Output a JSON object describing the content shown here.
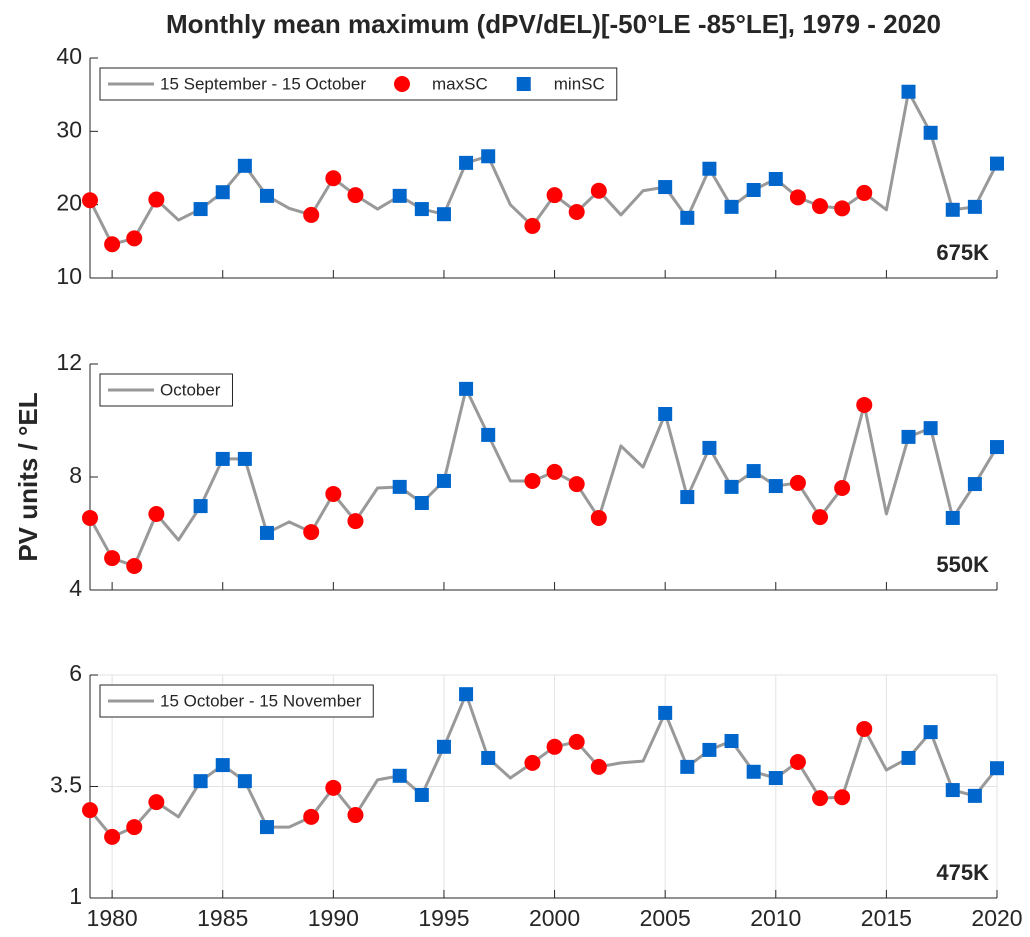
{
  "chart_data": [
    {
      "type": "line",
      "title": "Monthly mean maximum (dPV/dEL)[-50°LE -85°LE], 1979 - 2020",
      "annotation": "675K",
      "x": [
        1979,
        1980,
        1981,
        1982,
        1983,
        1984,
        1985,
        1986,
        1987,
        1988,
        1989,
        1990,
        1991,
        1992,
        1993,
        1994,
        1995,
        1996,
        1997,
        1998,
        1999,
        2000,
        2001,
        2002,
        2003,
        2004,
        2005,
        2006,
        2007,
        2008,
        2009,
        2010,
        2011,
        2012,
        2013,
        2014,
        2015,
        2016,
        2017,
        2018,
        2019,
        2020
      ],
      "xlim": [
        1979,
        2020
      ],
      "xticks": [
        1980,
        1985,
        1990,
        1995,
        2000,
        2005,
        2010,
        2015,
        2020
      ],
      "show_xtick_labels": false,
      "ylim": [
        10,
        40
      ],
      "yticks": [
        10,
        20,
        30,
        40
      ],
      "grid": false,
      "legend": "upper left",
      "series": [
        {
          "name": "15 September - 15 October",
          "color": "#999999",
          "values": [
            20.6,
            14.6,
            15.4,
            20.7,
            17.9,
            19.4,
            21.7,
            25.3,
            21.2,
            19.5,
            18.6,
            23.6,
            21.3,
            19.4,
            21.2,
            19.4,
            18.7,
            25.7,
            26.6,
            20.0,
            17.1,
            21.3,
            19.0,
            21.9,
            18.6,
            21.9,
            22.4,
            18.2,
            24.9,
            19.7,
            22.0,
            23.5,
            21.0,
            19.8,
            19.5,
            21.6,
            19.3,
            35.4,
            29.8,
            19.3,
            19.7,
            25.6
          ]
        },
        {
          "name": "maxSC",
          "color": "#ff0000",
          "marker": "circle",
          "values": [
            20.6,
            14.6,
            15.4,
            20.7,
            null,
            null,
            null,
            null,
            null,
            null,
            18.6,
            23.6,
            21.3,
            null,
            null,
            null,
            null,
            null,
            null,
            null,
            17.1,
            21.3,
            19.0,
            21.9,
            null,
            null,
            null,
            null,
            null,
            null,
            null,
            null,
            21.0,
            19.8,
            19.5,
            21.6,
            null,
            null,
            null,
            null,
            null,
            null
          ]
        },
        {
          "name": "minSC",
          "color": "#0066cc",
          "marker": "square",
          "values": [
            null,
            null,
            null,
            null,
            null,
            19.4,
            21.7,
            25.3,
            21.2,
            null,
            null,
            null,
            null,
            null,
            21.2,
            19.4,
            18.7,
            25.7,
            26.6,
            null,
            null,
            null,
            null,
            null,
            null,
            null,
            22.4,
            18.2,
            24.9,
            19.7,
            22.0,
            23.5,
            null,
            null,
            null,
            null,
            null,
            35.4,
            29.8,
            19.3,
            19.7,
            25.6
          ]
        }
      ]
    },
    {
      "type": "line",
      "ylabel": "PV units / °EL",
      "annotation": "550K",
      "x": [
        1979,
        1980,
        1981,
        1982,
        1983,
        1984,
        1985,
        1986,
        1987,
        1988,
        1989,
        1990,
        1991,
        1992,
        1993,
        1994,
        1995,
        1996,
        1997,
        1998,
        1999,
        2000,
        2001,
        2002,
        2003,
        2004,
        2005,
        2006,
        2007,
        2008,
        2009,
        2010,
        2011,
        2012,
        2013,
        2014,
        2015,
        2016,
        2017,
        2018,
        2019,
        2020
      ],
      "xlim": [
        1979,
        2020
      ],
      "xticks": [
        1980,
        1985,
        1990,
        1995,
        2000,
        2005,
        2010,
        2015,
        2020
      ],
      "show_xtick_labels": false,
      "ylim": [
        4,
        12
      ],
      "yticks": [
        4,
        8,
        12
      ],
      "grid": false,
      "legend": "upper left",
      "series": [
        {
          "name": "October",
          "color": "#999999",
          "values": [
            6.55,
            5.13,
            4.85,
            6.69,
            5.77,
            6.97,
            8.64,
            8.64,
            6.02,
            6.41,
            6.05,
            7.4,
            6.44,
            7.61,
            7.65,
            7.08,
            7.86,
            11.12,
            9.49,
            7.86,
            7.86,
            8.18,
            7.75,
            6.55,
            9.1,
            8.35,
            10.23,
            7.29,
            9.03,
            7.65,
            8.21,
            7.68,
            7.79,
            6.58,
            7.61,
            10.55,
            6.69,
            9.42,
            9.73,
            6.55,
            7.75,
            9.06
          ]
        },
        {
          "color": "#ff0000",
          "marker": "circle",
          "values": [
            6.55,
            5.13,
            4.85,
            6.69,
            null,
            null,
            null,
            null,
            null,
            null,
            6.05,
            7.4,
            6.44,
            null,
            null,
            null,
            null,
            null,
            null,
            null,
            7.86,
            8.18,
            7.75,
            6.55,
            null,
            null,
            null,
            null,
            null,
            null,
            null,
            null,
            7.79,
            6.58,
            7.61,
            10.55,
            null,
            null,
            null,
            null,
            null,
            null
          ]
        },
        {
          "color": "#0066cc",
          "marker": "square",
          "values": [
            null,
            null,
            null,
            null,
            null,
            6.97,
            8.64,
            8.64,
            6.02,
            null,
            null,
            null,
            null,
            null,
            7.65,
            7.08,
            7.86,
            11.12,
            9.49,
            null,
            null,
            null,
            null,
            null,
            null,
            null,
            10.23,
            7.29,
            9.03,
            7.65,
            8.21,
            7.68,
            null,
            null,
            null,
            null,
            null,
            9.42,
            9.73,
            6.55,
            7.75,
            9.06
          ]
        }
      ]
    },
    {
      "type": "line",
      "annotation": "475K",
      "x": [
        1979,
        1980,
        1981,
        1982,
        1983,
        1984,
        1985,
        1986,
        1987,
        1988,
        1989,
        1990,
        1991,
        1992,
        1993,
        1994,
        1995,
        1996,
        1997,
        1998,
        1999,
        2000,
        2001,
        2002,
        2003,
        2004,
        2005,
        2006,
        2007,
        2008,
        2009,
        2010,
        2011,
        2012,
        2013,
        2014,
        2015,
        2016,
        2017,
        2018,
        2019,
        2020
      ],
      "xlim": [
        1979,
        2020
      ],
      "xticks": [
        1980,
        1985,
        1990,
        1995,
        2000,
        2005,
        2010,
        2015,
        2020
      ],
      "show_xtick_labels": true,
      "ylim": [
        1,
        6
      ],
      "yticks": [
        1,
        3.5,
        6
      ],
      "grid": true,
      "legend": "upper left",
      "series": [
        {
          "name": "15 October - 15 November",
          "color": "#999999",
          "values": [
            2.97,
            2.37,
            2.59,
            3.15,
            2.82,
            3.62,
            3.98,
            3.62,
            2.59,
            2.59,
            2.82,
            3.47,
            2.86,
            3.65,
            3.74,
            3.31,
            4.39,
            5.57,
            4.14,
            3.69,
            4.03,
            4.39,
            4.5,
            3.94,
            4.03,
            4.07,
            5.15,
            3.94,
            4.32,
            4.52,
            3.83,
            3.69,
            4.05,
            3.24,
            3.26,
            4.79,
            3.87,
            4.14,
            4.72,
            3.42,
            3.29,
            3.91
          ]
        },
        {
          "color": "#ff0000",
          "marker": "circle",
          "values": [
            2.97,
            2.37,
            2.59,
            3.15,
            null,
            null,
            null,
            null,
            null,
            null,
            2.82,
            3.47,
            2.86,
            null,
            null,
            null,
            null,
            null,
            null,
            null,
            4.03,
            4.39,
            4.5,
            3.94,
            null,
            null,
            null,
            null,
            null,
            null,
            null,
            null,
            4.05,
            3.24,
            3.26,
            4.79,
            null,
            null,
            null,
            null,
            null,
            null
          ]
        },
        {
          "color": "#0066cc",
          "marker": "square",
          "values": [
            null,
            null,
            null,
            null,
            null,
            3.62,
            3.98,
            3.62,
            2.59,
            null,
            null,
            null,
            null,
            null,
            3.74,
            3.31,
            4.39,
            5.57,
            4.14,
            null,
            null,
            null,
            null,
            null,
            null,
            null,
            5.15,
            3.94,
            4.32,
            4.52,
            3.83,
            3.69,
            null,
            null,
            null,
            null,
            null,
            4.14,
            4.72,
            3.42,
            3.29,
            3.91
          ]
        }
      ]
    }
  ]
}
